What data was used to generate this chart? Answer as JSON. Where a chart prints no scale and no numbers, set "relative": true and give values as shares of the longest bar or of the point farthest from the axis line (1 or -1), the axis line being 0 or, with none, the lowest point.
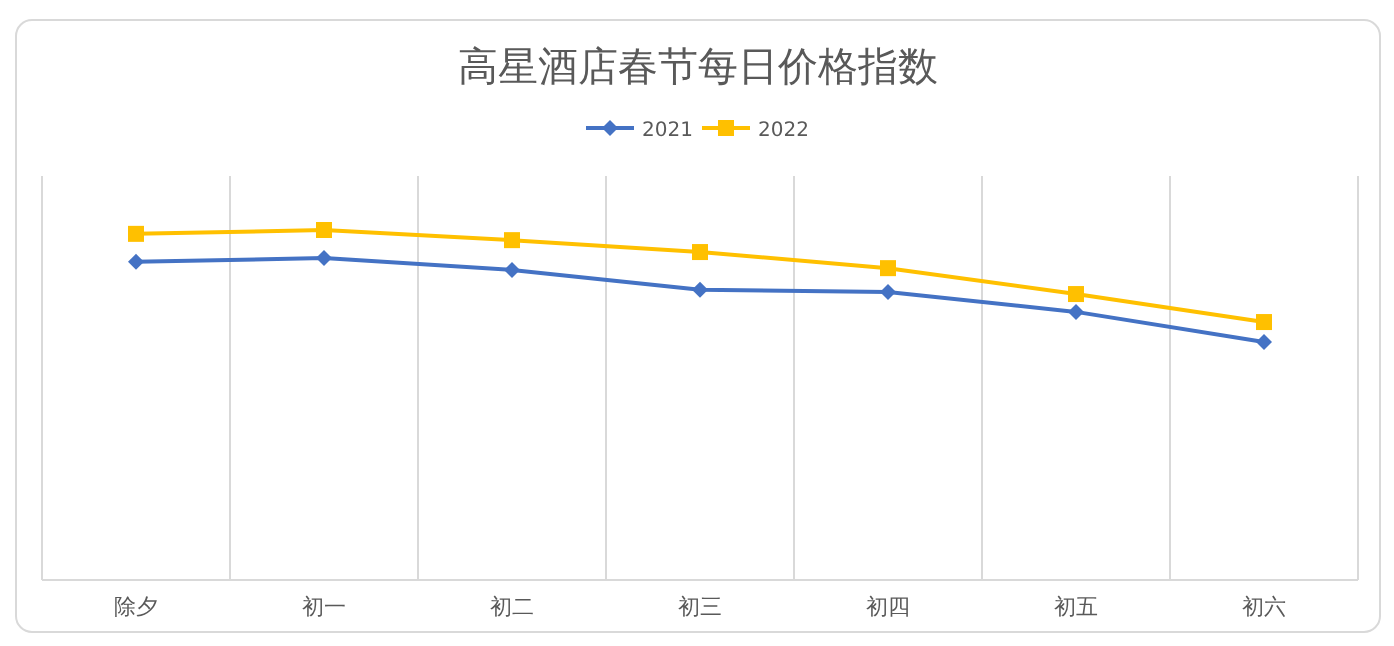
{
  "chart_data": {
    "type": "line",
    "title": "高星酒店春节每日价格指数",
    "categories": [
      "除夕",
      "初一",
      "初二",
      "初三",
      "初四",
      "初五",
      "初六"
    ],
    "relative": true,
    "grid": "x",
    "legend": "top",
    "series": [
      {
        "name": "2021",
        "color": "#4472c4",
        "marker": "diamond",
        "values": [
          0.909,
          0.92,
          0.886,
          0.829,
          0.823,
          0.766,
          0.68
        ]
      },
      {
        "name": "2022",
        "color": "#ffc000",
        "marker": "square",
        "values": [
          0.989,
          1,
          0.971,
          0.937,
          0.891,
          0.817,
          0.737
        ]
      }
    ]
  }
}
